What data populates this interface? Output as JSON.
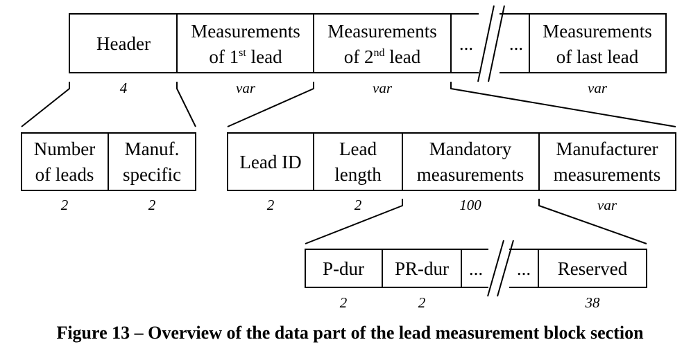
{
  "top_row": {
    "header": "Header",
    "lead1": [
      "Measurements",
      "of 1",
      "st",
      " lead"
    ],
    "lead2": [
      "Measurements",
      "of 2",
      "nd",
      " lead"
    ],
    "ellipsis": "...",
    "last": [
      "Measurements",
      "of last lead"
    ],
    "sizes": [
      "4",
      "var",
      "var",
      "var"
    ]
  },
  "header_row": {
    "cells": [
      [
        "Number",
        "of leads"
      ],
      [
        "Manuf.",
        "specific"
      ]
    ],
    "sizes": [
      "2",
      "2"
    ]
  },
  "lead_row": {
    "lead_id": "Lead ID",
    "lead_length": [
      "Lead",
      "length"
    ],
    "mandatory": [
      "Mandatory",
      "measurements"
    ],
    "manufacturer": [
      "Manufacturer",
      "measurements"
    ],
    "sizes": [
      "2",
      "2",
      "100",
      "var"
    ]
  },
  "mandatory_row": {
    "p_dur": "P-dur",
    "pr_dur": "PR-dur",
    "ellipsis": "...",
    "reserved": "Reserved",
    "sizes": [
      "2",
      "2",
      "38"
    ]
  },
  "caption": "Figure 13 – Overview of the data part of the lead measurement block section"
}
